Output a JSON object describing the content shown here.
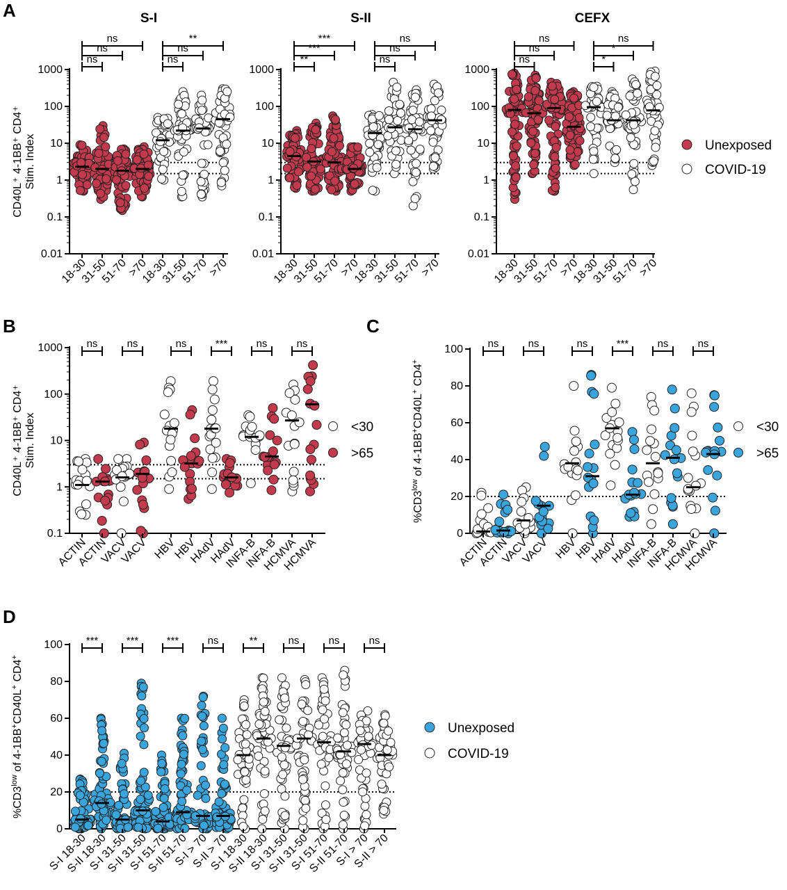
{
  "colors": {
    "unexposed_red": "#c23a4c",
    "unexposed_blue": "#3aa4dc",
    "covid": "#ffffff",
    "stroke": "#222222"
  },
  "legend_A": [
    {
      "label": "Unexposed",
      "fill": "#c23a4c"
    },
    {
      "label": "COVID-19",
      "fill": "#ffffff"
    }
  ],
  "legend_B": [
    {
      "label": "<30",
      "fill": "#ffffff"
    },
    {
      "label": ">65",
      "fill": "#c23a4c"
    }
  ],
  "legend_C": [
    {
      "label": "<30",
      "fill": "#ffffff"
    },
    {
      "label": ">65",
      "fill": "#3aa4dc"
    }
  ],
  "legend_D": [
    {
      "label": "Unexposed",
      "fill": "#3aa4dc"
    },
    {
      "label": "COVID-19",
      "fill": "#ffffff"
    }
  ],
  "chart_data": [
    {
      "panel": "A",
      "title": "S-I",
      "type": "scatter",
      "scale": "log",
      "ylabel": [
        "CD40L⁺ 4-1BB⁺ CD4⁺",
        "Stim. Index"
      ],
      "yticks": [
        "1000",
        "100",
        "10",
        "1",
        "0.1",
        "0.01"
      ],
      "ylim": [
        0.01,
        1000
      ],
      "reference_lines": [
        1.5,
        3
      ],
      "categories": [
        "18-30",
        "31-50",
        "51-70",
        ">70",
        "18-30",
        "31-50",
        "51-70",
        ">70"
      ],
      "groups": [
        "Unexposed",
        "Unexposed",
        "Unexposed",
        "Unexposed",
        "COVID-19",
        "COVID-19",
        "COVID-19",
        "COVID-19"
      ],
      "medians": [
        2.3,
        2.0,
        1.8,
        2.0,
        12,
        22,
        25,
        45
      ],
      "ranges": [
        [
          0.5,
          9
        ],
        [
          0.3,
          30
        ],
        [
          0.15,
          7
        ],
        [
          0.35,
          8
        ],
        [
          1.0,
          50
        ],
        [
          0.35,
          250
        ],
        [
          0.35,
          200
        ],
        [
          0.7,
          300
        ]
      ],
      "comparisons": [
        {
          "from": 0,
          "to": 1,
          "label": "ns"
        },
        {
          "from": 0,
          "to": 2,
          "label": "ns"
        },
        {
          "from": 0,
          "to": 3,
          "label": "ns"
        },
        {
          "from": 4,
          "to": 5,
          "label": "ns"
        },
        {
          "from": 4,
          "to": 6,
          "label": "ns"
        },
        {
          "from": 4,
          "to": 7,
          "label": "**"
        }
      ]
    },
    {
      "panel": "A",
      "title": "S-II",
      "type": "scatter",
      "scale": "log",
      "yticks": [
        "1000",
        "100",
        "10",
        "1",
        "0.1",
        "0.01"
      ],
      "ylim": [
        0.01,
        1000
      ],
      "reference_lines": [
        1.5,
        3
      ],
      "categories": [
        "18-30",
        "31-50",
        "51-70",
        ">70",
        "18-30",
        "31-50",
        "51-70",
        ">70"
      ],
      "groups": [
        "Unexposed",
        "Unexposed",
        "Unexposed",
        "Unexposed",
        "COVID-19",
        "COVID-19",
        "COVID-19",
        "COVID-19"
      ],
      "medians": [
        4.5,
        3.2,
        3.0,
        2.0,
        19,
        27,
        24,
        42
      ],
      "ranges": [
        [
          0.6,
          22
        ],
        [
          0.5,
          35
        ],
        [
          0.5,
          55
        ],
        [
          0.5,
          8
        ],
        [
          0.5,
          60
        ],
        [
          1.5,
          450
        ],
        [
          0.2,
          280
        ],
        [
          2.0,
          400
        ]
      ],
      "comparisons": [
        {
          "from": 0,
          "to": 1,
          "label": "**"
        },
        {
          "from": 0,
          "to": 2,
          "label": "***"
        },
        {
          "from": 0,
          "to": 3,
          "label": "***"
        },
        {
          "from": 4,
          "to": 5,
          "label": "ns"
        },
        {
          "from": 4,
          "to": 6,
          "label": "ns"
        },
        {
          "from": 4,
          "to": 7,
          "label": "ns"
        }
      ]
    },
    {
      "panel": "A",
      "title": "CEFX",
      "type": "scatter",
      "scale": "log",
      "yticks": [
        "1000",
        "100",
        "10",
        "1",
        "0.1",
        "0.01"
      ],
      "ylim": [
        0.01,
        1000
      ],
      "reference_lines": [
        1.5,
        3
      ],
      "categories": [
        "18-30",
        "31-50",
        "51-70",
        ">70",
        "18-30",
        "31-50",
        "51-70",
        ">70"
      ],
      "groups": [
        "Unexposed",
        "Unexposed",
        "Unexposed",
        "Unexposed",
        "COVID-19",
        "COVID-19",
        "COVID-19",
        "COVID-19"
      ],
      "medians": [
        80,
        65,
        90,
        28,
        95,
        42,
        42,
        78
      ],
      "ranges": [
        [
          0.3,
          800
        ],
        [
          1.5,
          700
        ],
        [
          0.5,
          450
        ],
        [
          2.5,
          250
        ],
        [
          1.5,
          350
        ],
        [
          3.0,
          250
        ],
        [
          0.55,
          550
        ],
        [
          2.5,
          900
        ]
      ],
      "comparisons": [
        {
          "from": 0,
          "to": 1,
          "label": "ns"
        },
        {
          "from": 0,
          "to": 2,
          "label": "ns"
        },
        {
          "from": 0,
          "to": 3,
          "label": "ns"
        },
        {
          "from": 4,
          "to": 5,
          "label": "*"
        },
        {
          "from": 4,
          "to": 6,
          "label": "*"
        },
        {
          "from": 4,
          "to": 7,
          "label": "ns"
        }
      ]
    },
    {
      "panel": "B",
      "title": "",
      "type": "scatter",
      "scale": "log",
      "ylabel": [
        "CD40L⁺ 4-1BB⁺ CD4⁺",
        "Stim. Index"
      ],
      "yticks": [
        "1000",
        "100",
        "10",
        "1",
        "0.1"
      ],
      "ylim": [
        0.1,
        1000
      ],
      "reference_lines": [
        1.5,
        3
      ],
      "categories": [
        "ACTIN",
        "ACTIN",
        "VACV",
        "VACV",
        "HBV",
        "HBV",
        "HAdV",
        "HAdV",
        "INFA-B",
        "INFA-B",
        "HCMVA",
        "HCMVA"
      ],
      "groups": [
        "<30",
        ">65",
        "<30",
        ">65",
        "<30",
        ">65",
        "<30",
        ">65",
        "<30",
        ">65",
        "<30",
        ">65"
      ],
      "medians": [
        1.1,
        1.3,
        1.6,
        1.9,
        18,
        3.2,
        18,
        1.6,
        12,
        4.5,
        27,
        60
      ],
      "ranges": [
        [
          0.25,
          4
        ],
        [
          0.1,
          4
        ],
        [
          0.1,
          4
        ],
        [
          0.1,
          9
        ],
        [
          0.9,
          190
        ],
        [
          0.55,
          45
        ],
        [
          0.9,
          190
        ],
        [
          0.75,
          4
        ],
        [
          1.2,
          35
        ],
        [
          0.85,
          50
        ],
        [
          0.8,
          160
        ],
        [
          0.8,
          420
        ]
      ],
      "comparisons": [
        {
          "from": 0,
          "to": 1,
          "label": "ns"
        },
        {
          "from": 2,
          "to": 3,
          "label": "ns"
        },
        {
          "from": 4,
          "to": 5,
          "label": "ns"
        },
        {
          "from": 6,
          "to": 7,
          "label": "***"
        },
        {
          "from": 8,
          "to": 9,
          "label": "ns"
        },
        {
          "from": 10,
          "to": 11,
          "label": "ns"
        }
      ]
    },
    {
      "panel": "C",
      "title": "",
      "type": "scatter",
      "scale": "linear",
      "ylabel": [
        "%CD3",
        "low",
        " of 4-1BB",
        "+",
        "CD40L",
        "+",
        " CD4",
        "+"
      ],
      "yticks": [
        "100",
        "80",
        "60",
        "40",
        "20",
        "0"
      ],
      "ylim": [
        0,
        100
      ],
      "reference_lines": [
        20
      ],
      "categories": [
        "ACTIN",
        "ACTIN",
        "VACV",
        "VACV",
        "HBV",
        "HBV",
        "HAdV",
        "HAdV",
        "INFA-B",
        "INFA-B",
        "HCMVA",
        "HCMVA"
      ],
      "groups": [
        "<30",
        ">65",
        "<30",
        ">65",
        "<30",
        ">65",
        "<30",
        ">65",
        "<30",
        ">65",
        "<30",
        ">65"
      ],
      "medians": [
        1,
        1.5,
        7,
        15,
        38,
        31,
        57,
        21,
        38,
        41,
        25,
        43
      ],
      "ranges": [
        [
          0,
          22
        ],
        [
          0,
          21
        ],
        [
          0,
          25
        ],
        [
          0,
          47
        ],
        [
          0,
          80
        ],
        [
          0,
          86
        ],
        [
          26,
          79
        ],
        [
          9,
          55
        ],
        [
          5,
          74
        ],
        [
          5,
          78
        ],
        [
          0,
          76
        ],
        [
          0,
          75
        ]
      ],
      "comparisons": [
        {
          "from": 0,
          "to": 1,
          "label": "ns"
        },
        {
          "from": 2,
          "to": 3,
          "label": "ns"
        },
        {
          "from": 4,
          "to": 5,
          "label": "ns"
        },
        {
          "from": 6,
          "to": 7,
          "label": "***"
        },
        {
          "from": 8,
          "to": 9,
          "label": "ns"
        },
        {
          "from": 10,
          "to": 11,
          "label": "ns"
        }
      ]
    },
    {
      "panel": "D",
      "title": "",
      "type": "scatter",
      "scale": "linear",
      "ylabel": [
        "%CD3",
        "low",
        " of 4-1BB",
        "+",
        "CD40L",
        "+",
        " CD4",
        "+"
      ],
      "yticks": [
        "100",
        "80",
        "60",
        "40",
        "20",
        "0"
      ],
      "ylim": [
        0,
        100
      ],
      "reference_lines": [
        20
      ],
      "categories": [
        "S-I 18-30",
        "S-II 18-30",
        "S-I 31-50",
        "S-II 31-50",
        "S-I 51-70",
        "S-II 51-70",
        "S-I > 70",
        "S-II > 70",
        "S-I 18-30",
        "S-II 18-30",
        "S-I 31-50",
        "S-II 31-50",
        "S-I 51-70",
        "S-II 51-70",
        "S-I > 70",
        "S-II > 70"
      ],
      "groups": [
        "Unexposed",
        "Unexposed",
        "Unexposed",
        "Unexposed",
        "Unexposed",
        "Unexposed",
        "Unexposed",
        "Unexposed",
        "COVID-19",
        "COVID-19",
        "COVID-19",
        "COVID-19",
        "COVID-19",
        "COVID-19",
        "COVID-19",
        "COVID-19"
      ],
      "medians": [
        5,
        14,
        5,
        10,
        4,
        9,
        7,
        7,
        40,
        49,
        45,
        49,
        47,
        42,
        46,
        40
      ],
      "ranges": [
        [
          0,
          27
        ],
        [
          0,
          60
        ],
        [
          0,
          41
        ],
        [
          0,
          79
        ],
        [
          0,
          40
        ],
        [
          0,
          60
        ],
        [
          0,
          72
        ],
        [
          0,
          60
        ],
        [
          0,
          70
        ],
        [
          0,
          82
        ],
        [
          0,
          82
        ],
        [
          0,
          81
        ],
        [
          0,
          82
        ],
        [
          0,
          86
        ],
        [
          0,
          64
        ],
        [
          8,
          62
        ]
      ],
      "comparisons": [
        {
          "from": 0,
          "to": 1,
          "label": "***"
        },
        {
          "from": 2,
          "to": 3,
          "label": "***"
        },
        {
          "from": 4,
          "to": 5,
          "label": "***"
        },
        {
          "from": 6,
          "to": 7,
          "label": "ns"
        },
        {
          "from": 8,
          "to": 9,
          "label": "**"
        },
        {
          "from": 10,
          "to": 11,
          "label": "ns"
        },
        {
          "from": 12,
          "to": 13,
          "label": "ns"
        },
        {
          "from": 14,
          "to": 15,
          "label": "ns"
        }
      ]
    }
  ]
}
